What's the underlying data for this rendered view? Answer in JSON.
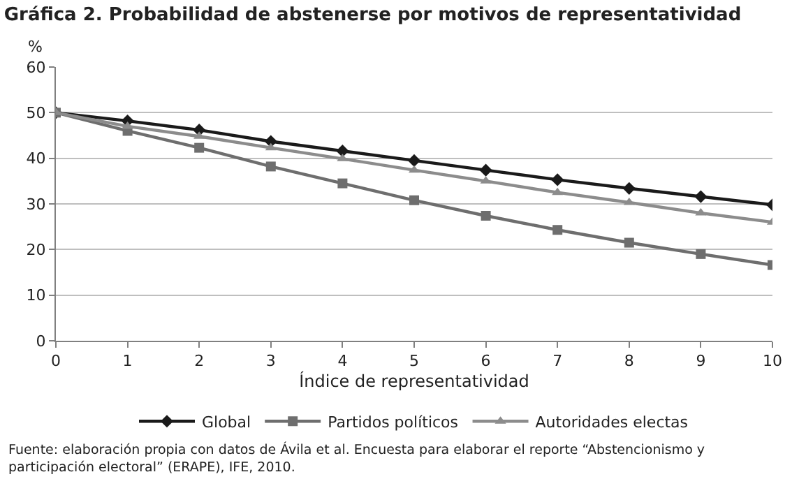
{
  "chart_data": {
    "type": "line",
    "title": "Gráfica 2. Probabilidad de abstenerse por motivos de representatividad",
    "xlabel": "Índice de representatividad",
    "ylabel": "%",
    "x": [
      0,
      1,
      2,
      3,
      4,
      5,
      6,
      7,
      8,
      9,
      10
    ],
    "series": [
      {
        "name": "Global",
        "color": "#1a1a1a",
        "marker": "diamond",
        "values": [
          50,
          48.2,
          46.2,
          43.7,
          41.6,
          39.5,
          37.4,
          35.3,
          33.4,
          31.6,
          29.8
        ]
      },
      {
        "name": "Partidos políticos",
        "color": "#6e6e6e",
        "marker": "square",
        "values": [
          50,
          46,
          42.3,
          38.2,
          34.5,
          30.8,
          27.4,
          24.3,
          21.5,
          19,
          16.6
        ]
      },
      {
        "name": "Autoridades electas",
        "color": "#8c8c8c",
        "marker": "triangle",
        "values": [
          50,
          47,
          44.8,
          42.3,
          39.9,
          37.4,
          35,
          32.5,
          30.3,
          28,
          26
        ]
      }
    ],
    "xlim": [
      0,
      10
    ],
    "xticks": [
      0,
      1,
      2,
      3,
      4,
      5,
      6,
      7,
      8,
      9,
      10
    ],
    "ylim": [
      0,
      60
    ],
    "yticks": [
      0,
      10,
      20,
      30,
      40,
      50,
      60
    ],
    "grid": "y",
    "legend": "bottom",
    "annotations": [
      "Fuente: elaboración propia con datos de Ávila et al. Encuesta para elaborar el reporte “Abstencionismo y\nparticipación electoral” (ERAPE), IFE, 2010."
    ]
  }
}
